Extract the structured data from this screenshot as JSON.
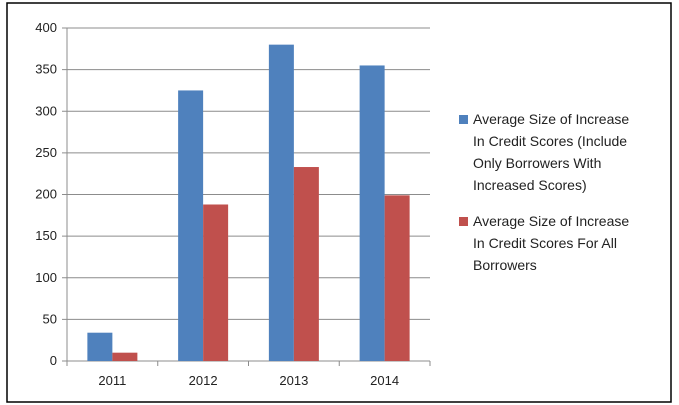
{
  "chart_data": {
    "type": "bar",
    "categories": [
      "2011",
      "2012",
      "2013",
      "2014"
    ],
    "series": [
      {
        "name": "Average Size of Increase In Credit Scores  (Include Only Borrowers With Increased Scores)",
        "legend_lines": [
          "Average Size of Increase",
          "In Credit Scores  (Include",
          "Only Borrowers With",
          "Increased Scores)"
        ],
        "color": "#4f81bd",
        "values": [
          34,
          325,
          380,
          355
        ]
      },
      {
        "name": "Average Size of Increase In Credit Scores For All Borrowers",
        "legend_lines": [
          "Average Size of Increase",
          "In Credit Scores For All",
          "Borrowers"
        ],
        "color": "#c0504d",
        "values": [
          10,
          188,
          233,
          199
        ]
      }
    ],
    "ylim": [
      0,
      400
    ],
    "yticks": [
      0,
      50,
      100,
      150,
      200,
      250,
      300,
      350,
      400
    ],
    "grid": true,
    "legend_position": "right"
  }
}
